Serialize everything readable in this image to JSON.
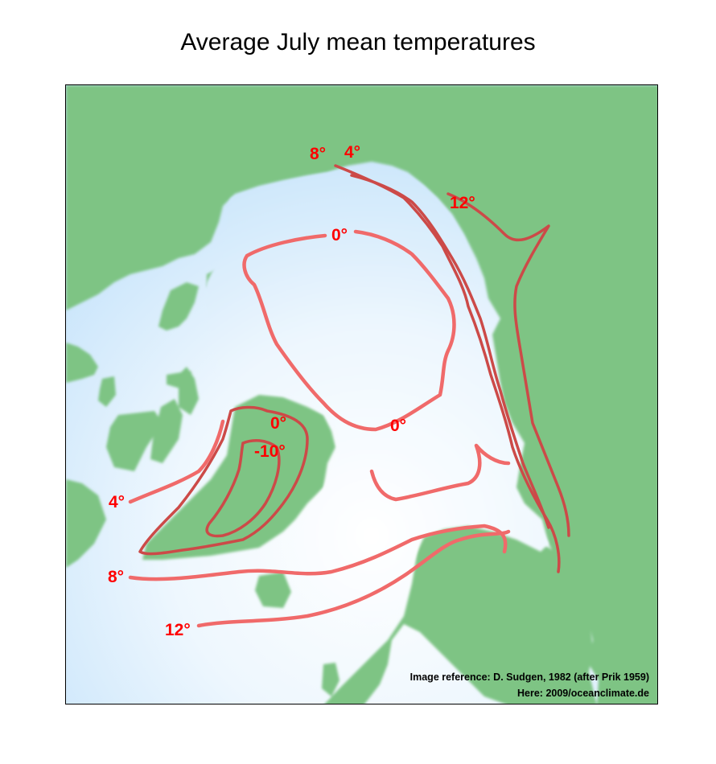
{
  "title": "Average July mean temperatures",
  "isotherm_labels": {
    "eight_top": "8°",
    "four_top": "4°",
    "twelve_right": "12°",
    "zero_top": "0°",
    "zero_bottom": "0°",
    "zero_greenland": "0°",
    "minus_ten": "-10°",
    "four_left": "4°",
    "eight_left": "8°",
    "twelve_left": "12°"
  },
  "credits": {
    "reference": "Image reference: D. Sudgen, 1982 (after Prik 1959)",
    "source": "Here: 2009/oceanclimate.de"
  },
  "colors": {
    "land": "#7ec484",
    "ocean_center": "#ffffff",
    "ocean_edge": "#c2e2fa",
    "isotherm_light": "#f06a6a",
    "isotherm_dark": "#cc4a48",
    "label": "#ff0000"
  }
}
